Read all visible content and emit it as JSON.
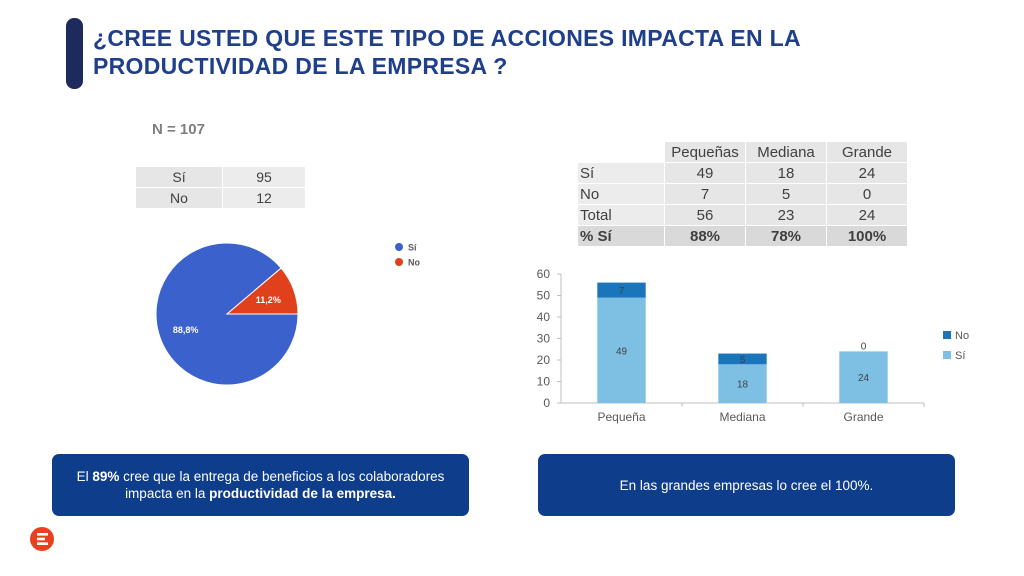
{
  "title": "¿CREE USTED QUE ESTE TIPO DE ACCIONES IMPACTA EN LA PRODUCTIVIDAD DE LA EMPRESA ?",
  "n_label": "N = 107",
  "summary_table": {
    "rows": [
      {
        "label": "Sí",
        "value": "95"
      },
      {
        "label": "No",
        "value": "12"
      }
    ]
  },
  "size_table": {
    "headers": [
      "",
      "Pequeñas",
      "Mediana",
      "Grande"
    ],
    "rows": [
      {
        "label": "Sí",
        "values": [
          "49",
          "18",
          "24"
        ]
      },
      {
        "label": "No",
        "values": [
          "7",
          "5",
          "0"
        ]
      },
      {
        "label": "Total",
        "values": [
          "56",
          "23",
          "24"
        ]
      },
      {
        "label": "% Sí",
        "values": [
          "88%",
          "78%",
          "100%"
        ]
      }
    ]
  },
  "callouts": {
    "left": {
      "pre": "El ",
      "bold1": "89%",
      "mid": " cree que la entrega de beneficios a los colaboradores impacta en la ",
      "bold2": "productividad de la empresa."
    },
    "right": "En las grandes empresas lo cree el 100%."
  },
  "colors": {
    "title": "#1f3f8a",
    "pie_si": "#3a61cc",
    "pie_no": "#e0401c",
    "bar_si": "#7ec0e4",
    "bar_no": "#1b75bb",
    "callout_bg": "#0e3d8c",
    "logo": "#e9401e"
  },
  "icons": {
    "logo": "brand-logo-icon"
  },
  "chart_data": [
    {
      "type": "pie",
      "labels": [
        "Sí",
        "No"
      ],
      "values": [
        88.8,
        11.2
      ],
      "data_labels": [
        "88,8%",
        "11,2%"
      ],
      "legend": [
        "Sí",
        "No"
      ],
      "legend_position": "right",
      "title": ""
    },
    {
      "type": "bar",
      "stacked": true,
      "categories": [
        "Pequeña",
        "Mediana",
        "Grande"
      ],
      "series": [
        {
          "name": "Sí",
          "values": [
            49,
            18,
            24
          ]
        },
        {
          "name": "No",
          "values": [
            7,
            5,
            0
          ]
        }
      ],
      "ylim": [
        0,
        60
      ],
      "yticks": [
        0,
        10,
        20,
        30,
        40,
        50,
        60
      ],
      "legend": [
        "No",
        "Sí"
      ],
      "legend_position": "right",
      "grid": false,
      "title": "",
      "xlabel": "",
      "ylabel": ""
    }
  ]
}
